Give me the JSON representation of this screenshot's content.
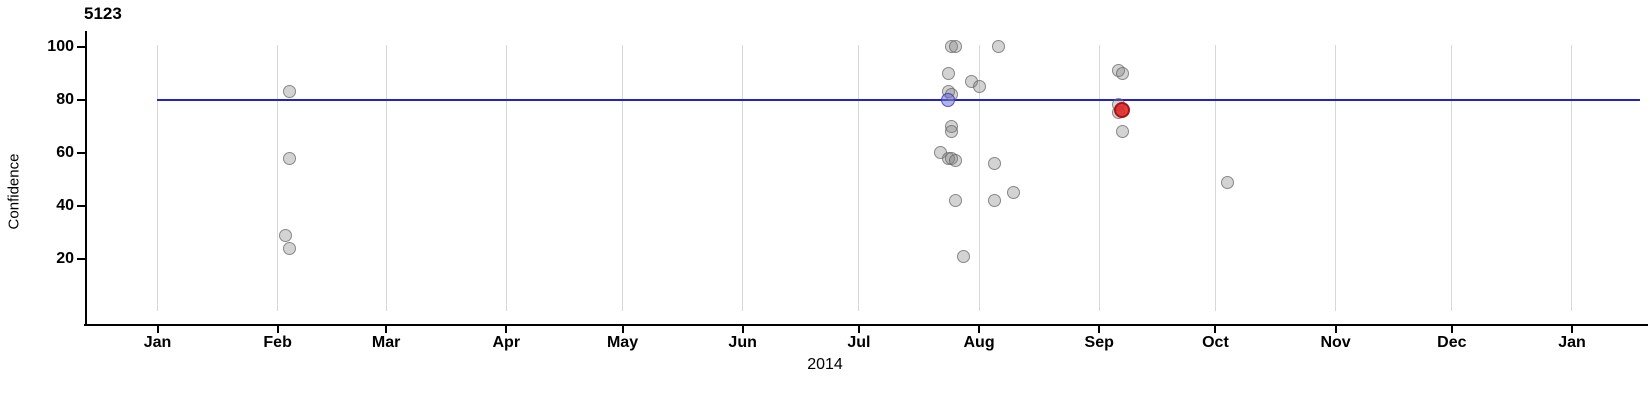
{
  "chart_data": {
    "type": "scatter",
    "title": "5123",
    "xlabel": "2014",
    "ylabel": "Confidence",
    "x_axis": {
      "type": "time",
      "start": "2014-01-01",
      "end": "2015-01-01",
      "tick_labels": [
        "Jan",
        "Feb",
        "Mar",
        "Apr",
        "May",
        "Jun",
        "Jul",
        "Aug",
        "Sep",
        "Oct",
        "Nov",
        "Dec",
        "Jan"
      ],
      "grid": true
    },
    "y_axis": {
      "ticks": [
        100,
        80,
        60,
        40,
        20
      ],
      "range": [
        0,
        105
      ],
      "grid": false
    },
    "legend": "none",
    "reference_line": {
      "orientation": "horizontal",
      "value": 80,
      "color": "#2122cc"
    },
    "marker_colors": {
      "gray": "#c8c8c8",
      "red": "#e02626",
      "blue": "#7373cd"
    },
    "points": [
      {
        "date": "2014-02-04",
        "value": 83,
        "marker": "gray"
      },
      {
        "date": "2014-02-04",
        "value": 58,
        "marker": "gray"
      },
      {
        "date": "2014-02-03",
        "value": 29,
        "marker": "gray"
      },
      {
        "date": "2014-02-04",
        "value": 24,
        "marker": "gray"
      },
      {
        "date": "2014-07-25",
        "value": 100,
        "marker": "gray"
      },
      {
        "date": "2014-07-26",
        "value": 100,
        "marker": "gray"
      },
      {
        "date": "2014-08-06",
        "value": 100,
        "marker": "gray"
      },
      {
        "date": "2014-07-24",
        "value": 90,
        "marker": "gray"
      },
      {
        "date": "2014-07-30",
        "value": 87,
        "marker": "gray"
      },
      {
        "date": "2014-08-01",
        "value": 85,
        "marker": "gray"
      },
      {
        "date": "2014-07-24",
        "value": 83,
        "marker": "gray"
      },
      {
        "date": "2014-07-25",
        "value": 82,
        "marker": "gray"
      },
      {
        "date": "2014-07-24",
        "value": 80,
        "marker": "blue"
      },
      {
        "date": "2014-07-25",
        "value": 70,
        "marker": "gray"
      },
      {
        "date": "2014-07-25",
        "value": 68,
        "marker": "gray"
      },
      {
        "date": "2014-07-22",
        "value": 60,
        "marker": "gray"
      },
      {
        "date": "2014-07-24",
        "value": 58,
        "marker": "gray"
      },
      {
        "date": "2014-07-25",
        "value": 58,
        "marker": "gray"
      },
      {
        "date": "2014-07-26",
        "value": 57,
        "marker": "gray"
      },
      {
        "date": "2014-08-05",
        "value": 56,
        "marker": "gray"
      },
      {
        "date": "2014-07-26",
        "value": 42,
        "marker": "gray"
      },
      {
        "date": "2014-08-05",
        "value": 42,
        "marker": "gray"
      },
      {
        "date": "2014-08-10",
        "value": 45,
        "marker": "gray"
      },
      {
        "date": "2014-07-28",
        "value": 21,
        "marker": "gray"
      },
      {
        "date": "2014-09-06",
        "value": 91,
        "marker": "gray"
      },
      {
        "date": "2014-09-07",
        "value": 90,
        "marker": "gray"
      },
      {
        "date": "2014-09-06",
        "value": 78,
        "marker": "gray"
      },
      {
        "date": "2014-09-06",
        "value": 75,
        "marker": "gray"
      },
      {
        "date": "2014-09-07",
        "value": 76,
        "marker": "red"
      },
      {
        "date": "2014-09-07",
        "value": 68,
        "marker": "gray"
      },
      {
        "date": "2014-10-04",
        "value": 49,
        "marker": "gray"
      }
    ]
  }
}
